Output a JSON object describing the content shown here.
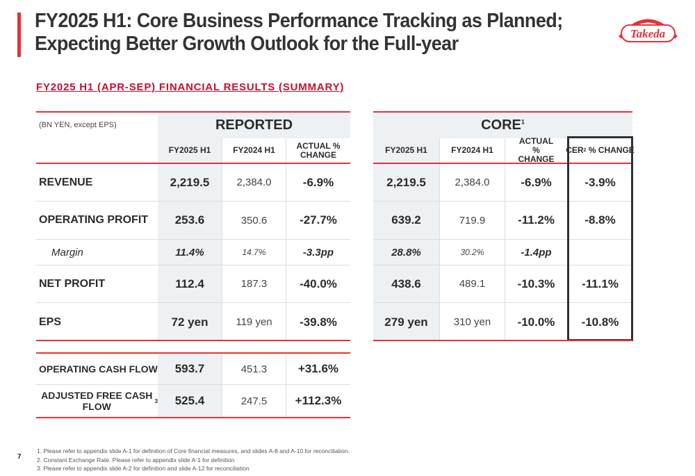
{
  "title": {
    "line1": "FY2025 H1: Core Business Performance Tracking as Planned;",
    "line2": "Expecting Better Growth Outlook for the Full-year"
  },
  "subtitle": "FY2025 H1 (APR-SEP) FINANCIAL RESULTS (SUMMARY)",
  "logo": {
    "text": "Takeda",
    "color": "#e8313a"
  },
  "units_note": "(BN YEN, except EPS)",
  "reported": {
    "title": "REPORTED",
    "cols": [
      "FY2025 H1",
      "FY2024 H1",
      "ACTUAL % CHANGE"
    ],
    "rows": [
      {
        "label": "REVENUE",
        "v": [
          "2,219.5",
          "2,384.0",
          "-6.9%"
        ]
      },
      {
        "label": "OPERATING PROFIT",
        "v": [
          "253.6",
          "350.6",
          "-27.7%"
        ]
      },
      {
        "label": "Margin",
        "v": [
          "11.4%",
          "14.7%",
          "-3.3pp"
        ]
      },
      {
        "label": "NET PROFIT",
        "v": [
          "112.4",
          "187.3",
          "-40.0%"
        ]
      },
      {
        "label": "EPS",
        "v": [
          "72 yen",
          "119 yen",
          "-39.8%"
        ]
      }
    ]
  },
  "core": {
    "title": "CORE",
    "title_sup": "1",
    "cols": [
      "FY2025 H1",
      "FY2024 H1",
      "ACTUAL % CHANGE",
      "CER"
    ],
    "cer_sup": "2",
    "cer_suffix": " % CHANGE",
    "rows": [
      {
        "v": [
          "2,219.5",
          "2,384.0",
          "-6.9%",
          "-3.9%"
        ]
      },
      {
        "v": [
          "639.2",
          "719.9",
          "-11.2%",
          "-8.8%"
        ]
      },
      {
        "v": [
          "28.8%",
          "30.2%",
          "-1.4pp",
          ""
        ]
      },
      {
        "v": [
          "438.6",
          "489.1",
          "-10.3%",
          "-11.1%"
        ]
      },
      {
        "v": [
          "279 yen",
          "310 yen",
          "-10.0%",
          "-10.8%"
        ]
      }
    ]
  },
  "cash": {
    "rows": [
      {
        "label": "OPERATING CASH FLOW",
        "sup": "",
        "v": [
          "593.7",
          "451.3",
          "+31.6%"
        ]
      },
      {
        "label": "ADJUSTED FREE CASH FLOW",
        "sup": "3",
        "v": [
          "525.4",
          "247.5",
          "+112.3%"
        ]
      }
    ]
  },
  "footnotes": [
    "1. Please refer to appendix slide A-1 for definition of Core financial measures, and slides A-8 and A-10 for reconciliation.",
    "2. Constant Exchange Rate. Please refer to appendix slide A-1 for definition",
    "3. Please refer to appendix slide A-2 for definition and slide A-12 for reconciliation"
  ],
  "page_number": "7"
}
